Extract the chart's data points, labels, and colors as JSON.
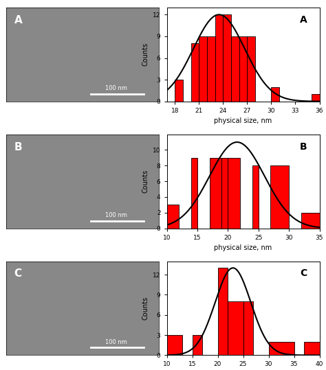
{
  "chart_A": {
    "label": "A",
    "bar_edges": [
      18,
      19,
      20,
      21,
      22,
      23,
      24,
      25,
      26,
      27,
      28,
      29,
      30,
      31,
      32,
      33,
      34,
      35,
      36
    ],
    "bar_heights": [
      3,
      0,
      8,
      9,
      9,
      12,
      12,
      9,
      9,
      9,
      0,
      0,
      2,
      0,
      0,
      0,
      0,
      1
    ],
    "xlim": [
      17,
      36
    ],
    "ylim": [
      0,
      13
    ],
    "yticks": [
      0,
      3,
      6,
      9,
      12
    ],
    "xticks": [
      18,
      21,
      24,
      27,
      30,
      33,
      36
    ],
    "xlabel": "physical size, nm",
    "ylabel": "Counts",
    "gauss_mu": 23.5,
    "gauss_sigma": 3.2,
    "gauss_amp": 12.0
  },
  "chart_B": {
    "label": "B",
    "bar_edges": [
      10,
      12,
      14,
      15,
      17,
      19,
      20,
      22,
      24,
      25,
      27,
      30,
      32,
      35
    ],
    "bar_heights": [
      3,
      0,
      9,
      0,
      9,
      9,
      9,
      0,
      8,
      0,
      8,
      0,
      2
    ],
    "xlim": [
      10,
      35
    ],
    "ylim": [
      0,
      12
    ],
    "yticks": [
      0,
      2,
      4,
      6,
      8,
      10
    ],
    "xticks": [
      10,
      15,
      20,
      25,
      30,
      35
    ],
    "xlabel": "physical size, nm",
    "ylabel": "Counts",
    "gauss_mu": 21.5,
    "gauss_sigma": 4.5,
    "gauss_amp": 11.0
  },
  "chart_C": {
    "label": "C",
    "bar_edges": [
      10,
      13,
      15,
      17,
      20,
      22,
      25,
      27,
      30,
      35,
      37,
      40
    ],
    "bar_heights": [
      3,
      0,
      3,
      0,
      13,
      8,
      8,
      0,
      2,
      0,
      2
    ],
    "xlim": [
      10,
      40
    ],
    "ylim": [
      0,
      14
    ],
    "yticks": [
      0,
      3,
      6,
      9,
      12
    ],
    "xticks": [
      10,
      15,
      20,
      25,
      30,
      35,
      40
    ],
    "xlabel": "physical size, nm",
    "ylabel": "Counts",
    "gauss_mu": 23.0,
    "gauss_sigma": 3.5,
    "gauss_amp": 13.0
  },
  "bar_color": "#FF0000",
  "bar_edgecolor": "#000000",
  "curve_color": "#000000",
  "background_color": "#FFFFFF",
  "fig_background": "#FFFFFF"
}
